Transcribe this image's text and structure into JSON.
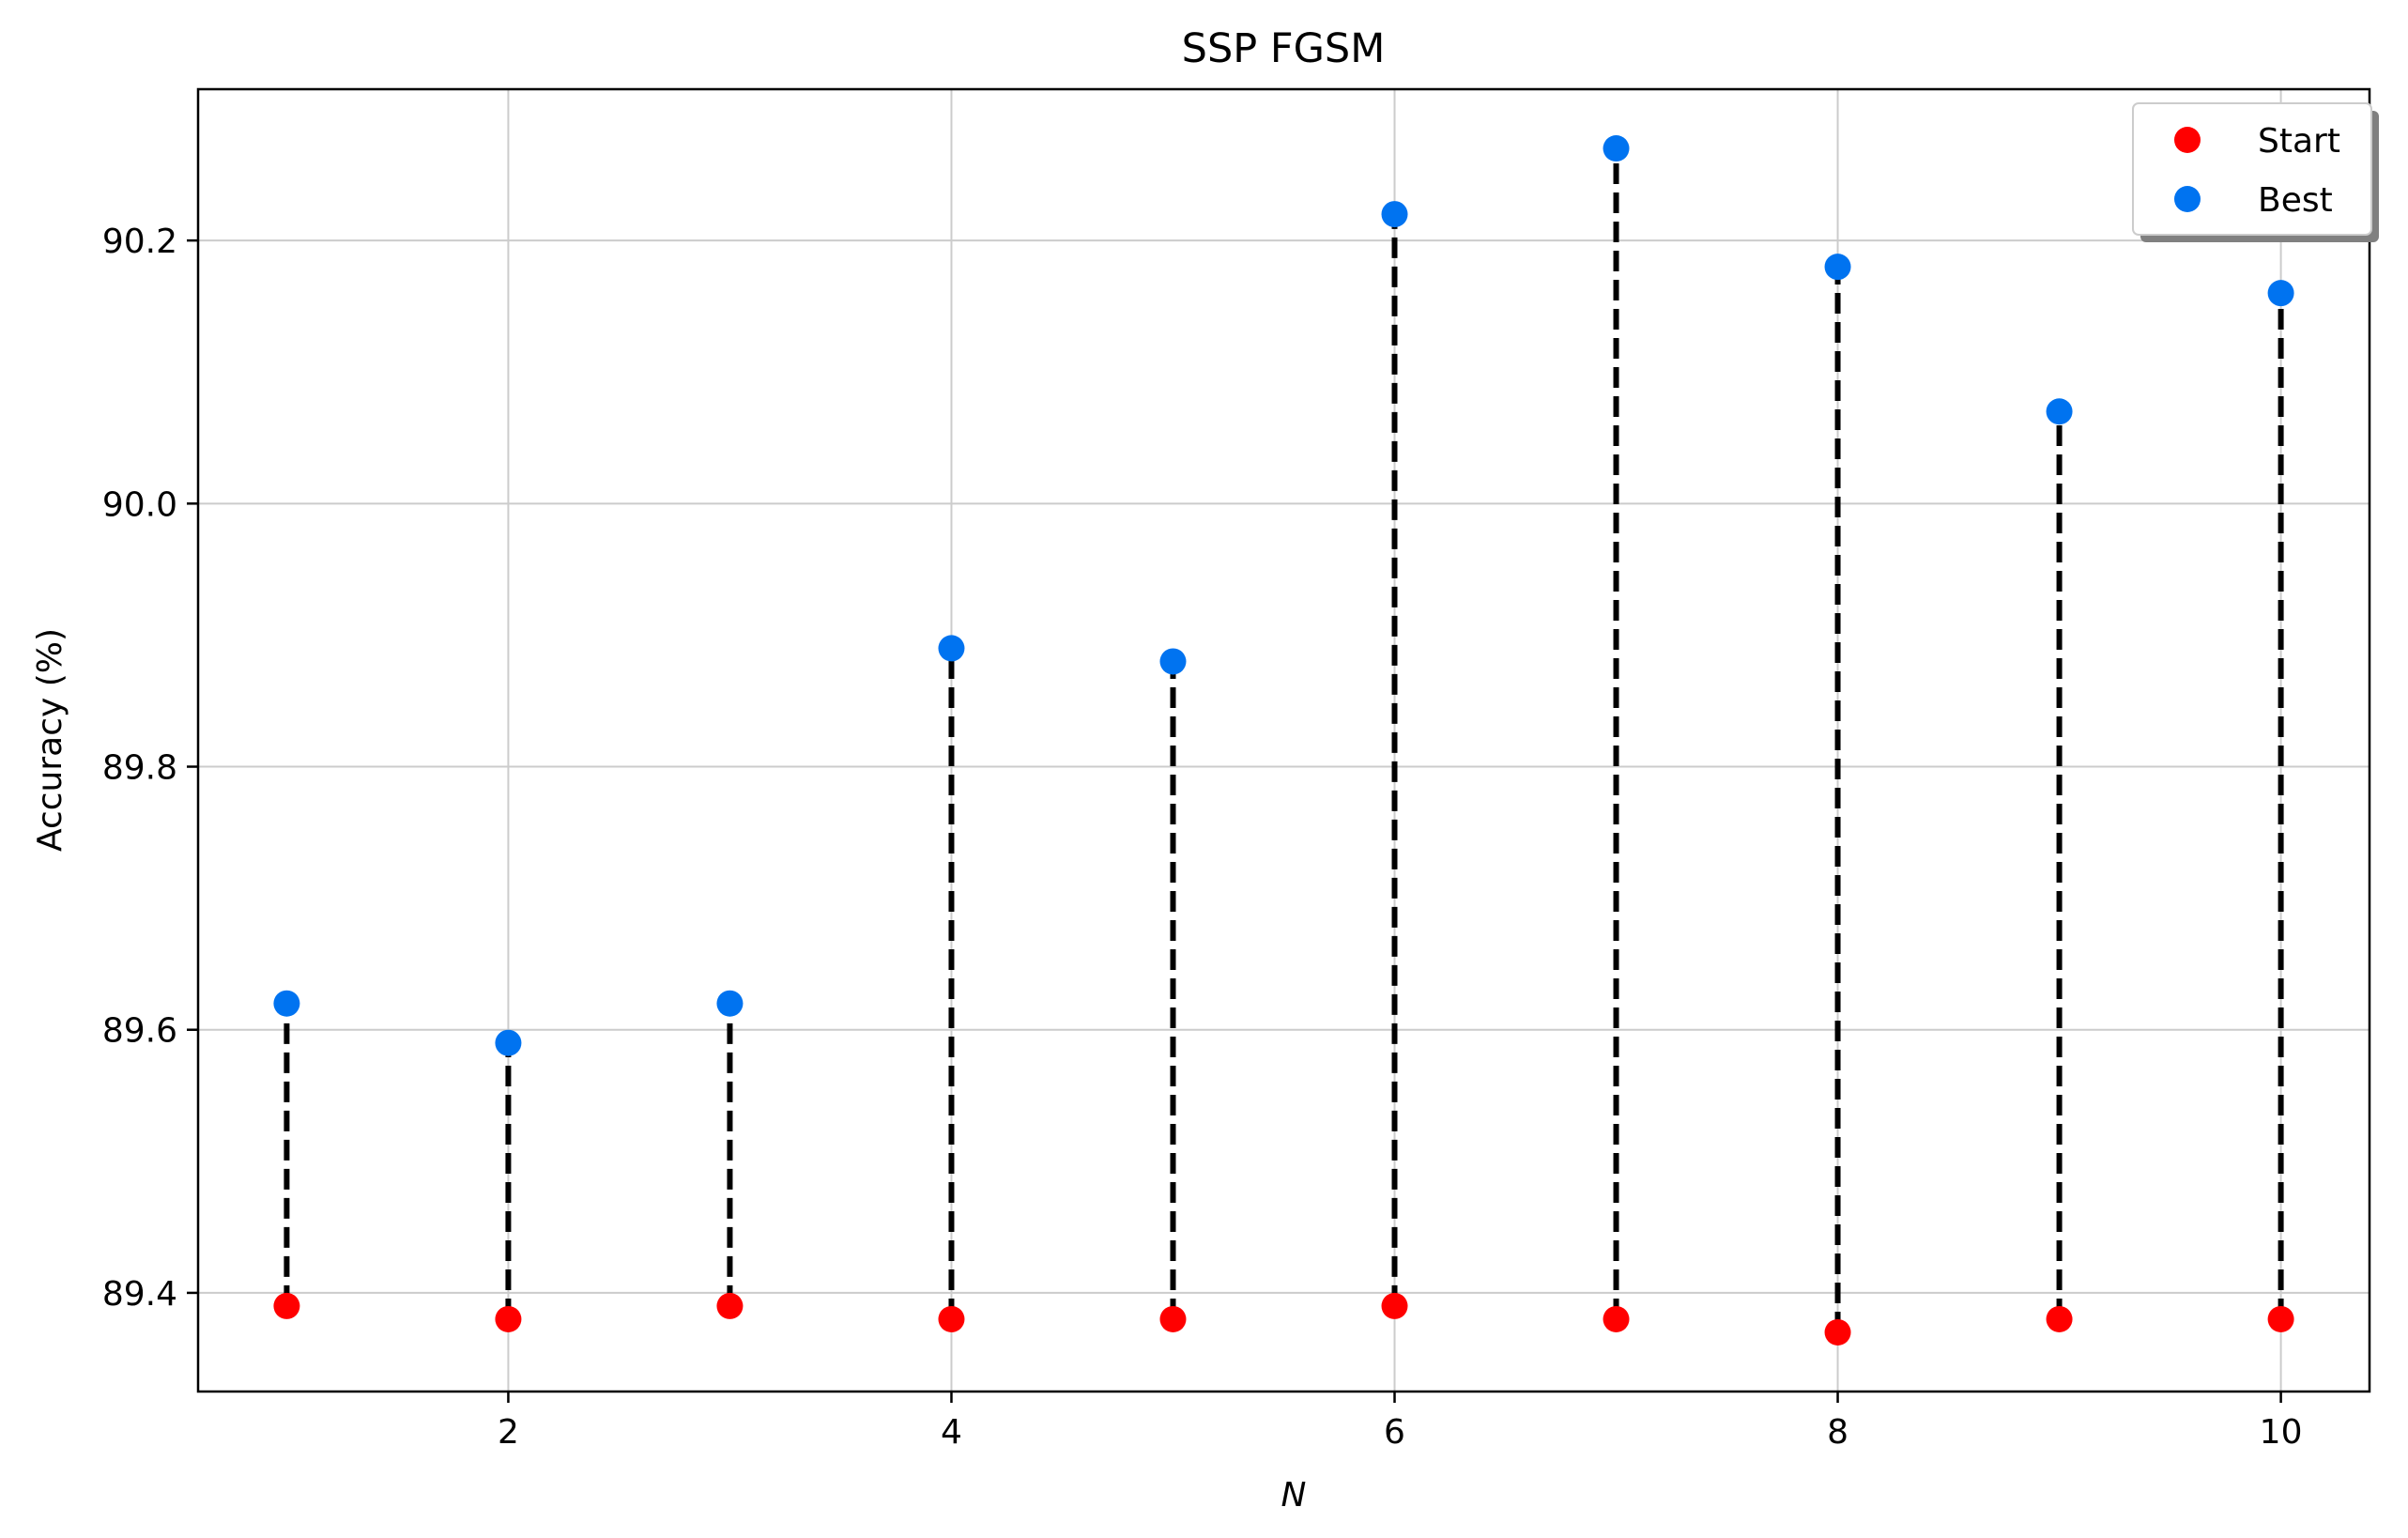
{
  "chart_data": {
    "type": "scatter",
    "title": "SSP FGSM",
    "xlabel": "N",
    "ylabel": "Accuracy (%)",
    "x": [
      1,
      2,
      3,
      4,
      5,
      6,
      7,
      8,
      9,
      10
    ],
    "xlim": [
      0.6,
      10.4
    ],
    "ylim": [
      89.325,
      90.315
    ],
    "xticks": [
      2,
      4,
      6,
      8,
      10
    ],
    "xtick_labels": [
      "2",
      "4",
      "6",
      "8",
      "10"
    ],
    "yticks": [
      89.4,
      89.6,
      89.8,
      90.0,
      90.2
    ],
    "ytick_labels": [
      "89.4",
      "89.6",
      "89.8",
      "90.0",
      "90.2"
    ],
    "grid": true,
    "legend_position": "top-right",
    "stem_style": "black dashed vertical line from Start to Best",
    "series": [
      {
        "name": "Start",
        "color": "#ff0000",
        "values": [
          89.39,
          89.38,
          89.39,
          89.38,
          89.38,
          89.39,
          89.38,
          89.37,
          89.38,
          89.38
        ]
      },
      {
        "name": "Best",
        "color": "#0073f0",
        "values": [
          89.62,
          89.59,
          89.62,
          89.89,
          89.88,
          90.22,
          90.27,
          90.18,
          90.07,
          90.16
        ]
      }
    ]
  }
}
